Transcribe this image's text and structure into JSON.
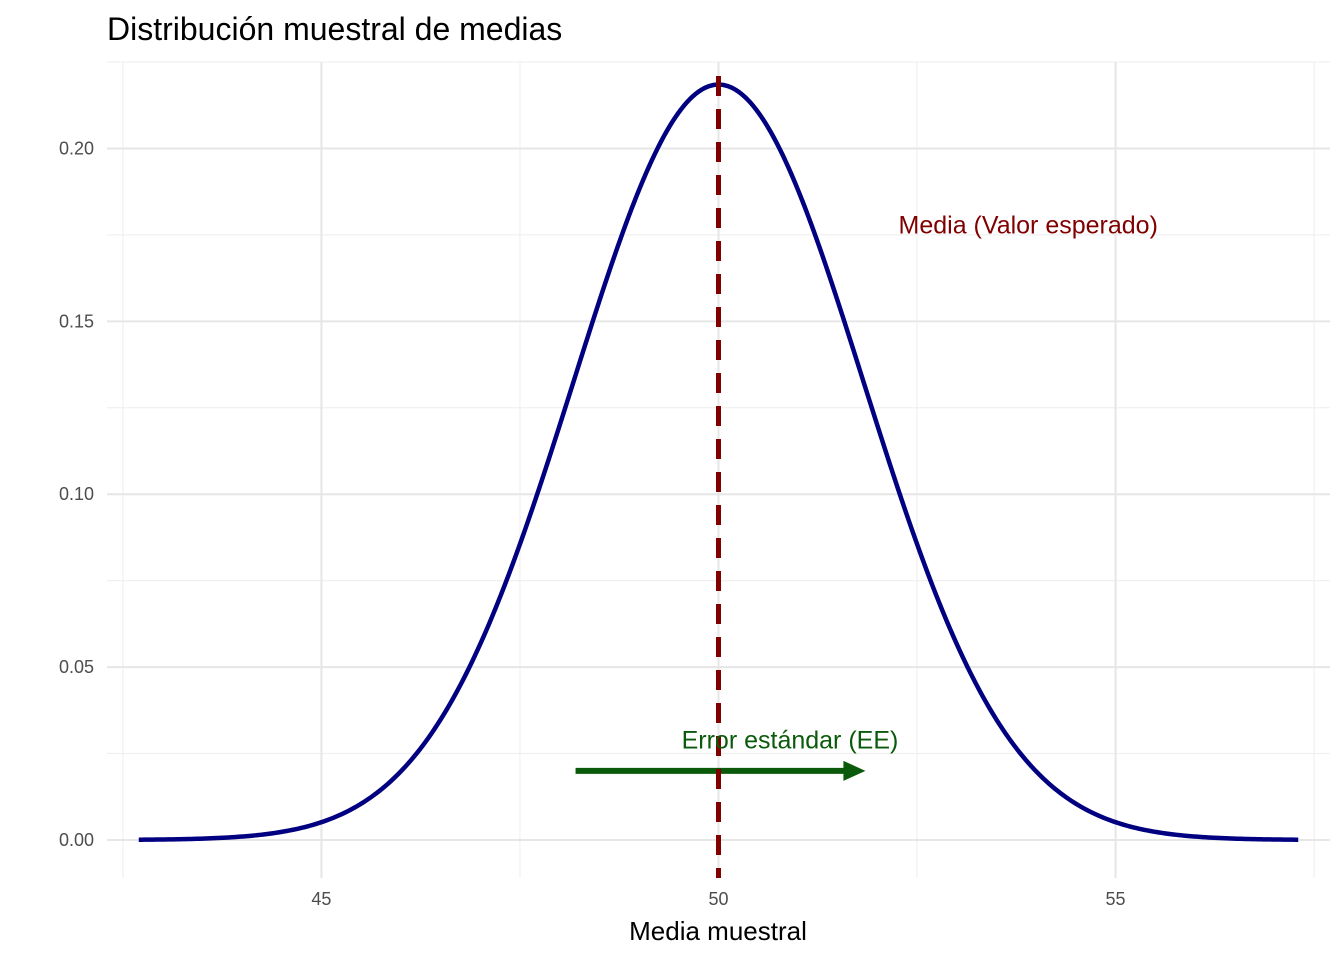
{
  "chart_data": {
    "type": "line",
    "title": "Distribución muestral de medias",
    "xlabel": "Media muestral",
    "ylabel": "",
    "xlim": [
      42.3,
      57.7
    ],
    "ylim": [
      -0.011,
      0.225
    ],
    "x_ticks": [
      45,
      50,
      55
    ],
    "x_tick_labels": [
      "45",
      "50",
      "55"
    ],
    "y_ticks": [
      0.0,
      0.05,
      0.1,
      0.15,
      0.2
    ],
    "y_tick_labels": [
      "0.00",
      "0.05",
      "0.10",
      "0.15",
      "0.20"
    ],
    "grid": true,
    "series": [
      {
        "curve": "normal-density",
        "mean": 50,
        "sd": 1.826,
        "x_range": [
          42.7,
          57.3
        ],
        "color": "#000080"
      }
    ],
    "reference_line": {
      "x": 50,
      "style": "dashed",
      "color": "#800000"
    },
    "arrow": {
      "x_start": 48.2,
      "x_end": 51.85,
      "y": 0.02,
      "color": "#0b5a0b"
    },
    "annotations": [
      {
        "text": "Media (Valor esperado)",
        "x": 53.9,
        "y": 0.178,
        "color": "#800000"
      },
      {
        "text": "Error estándar (EE)",
        "x": 50.9,
        "y": 0.029,
        "color": "#0b5a0b"
      }
    ]
  }
}
